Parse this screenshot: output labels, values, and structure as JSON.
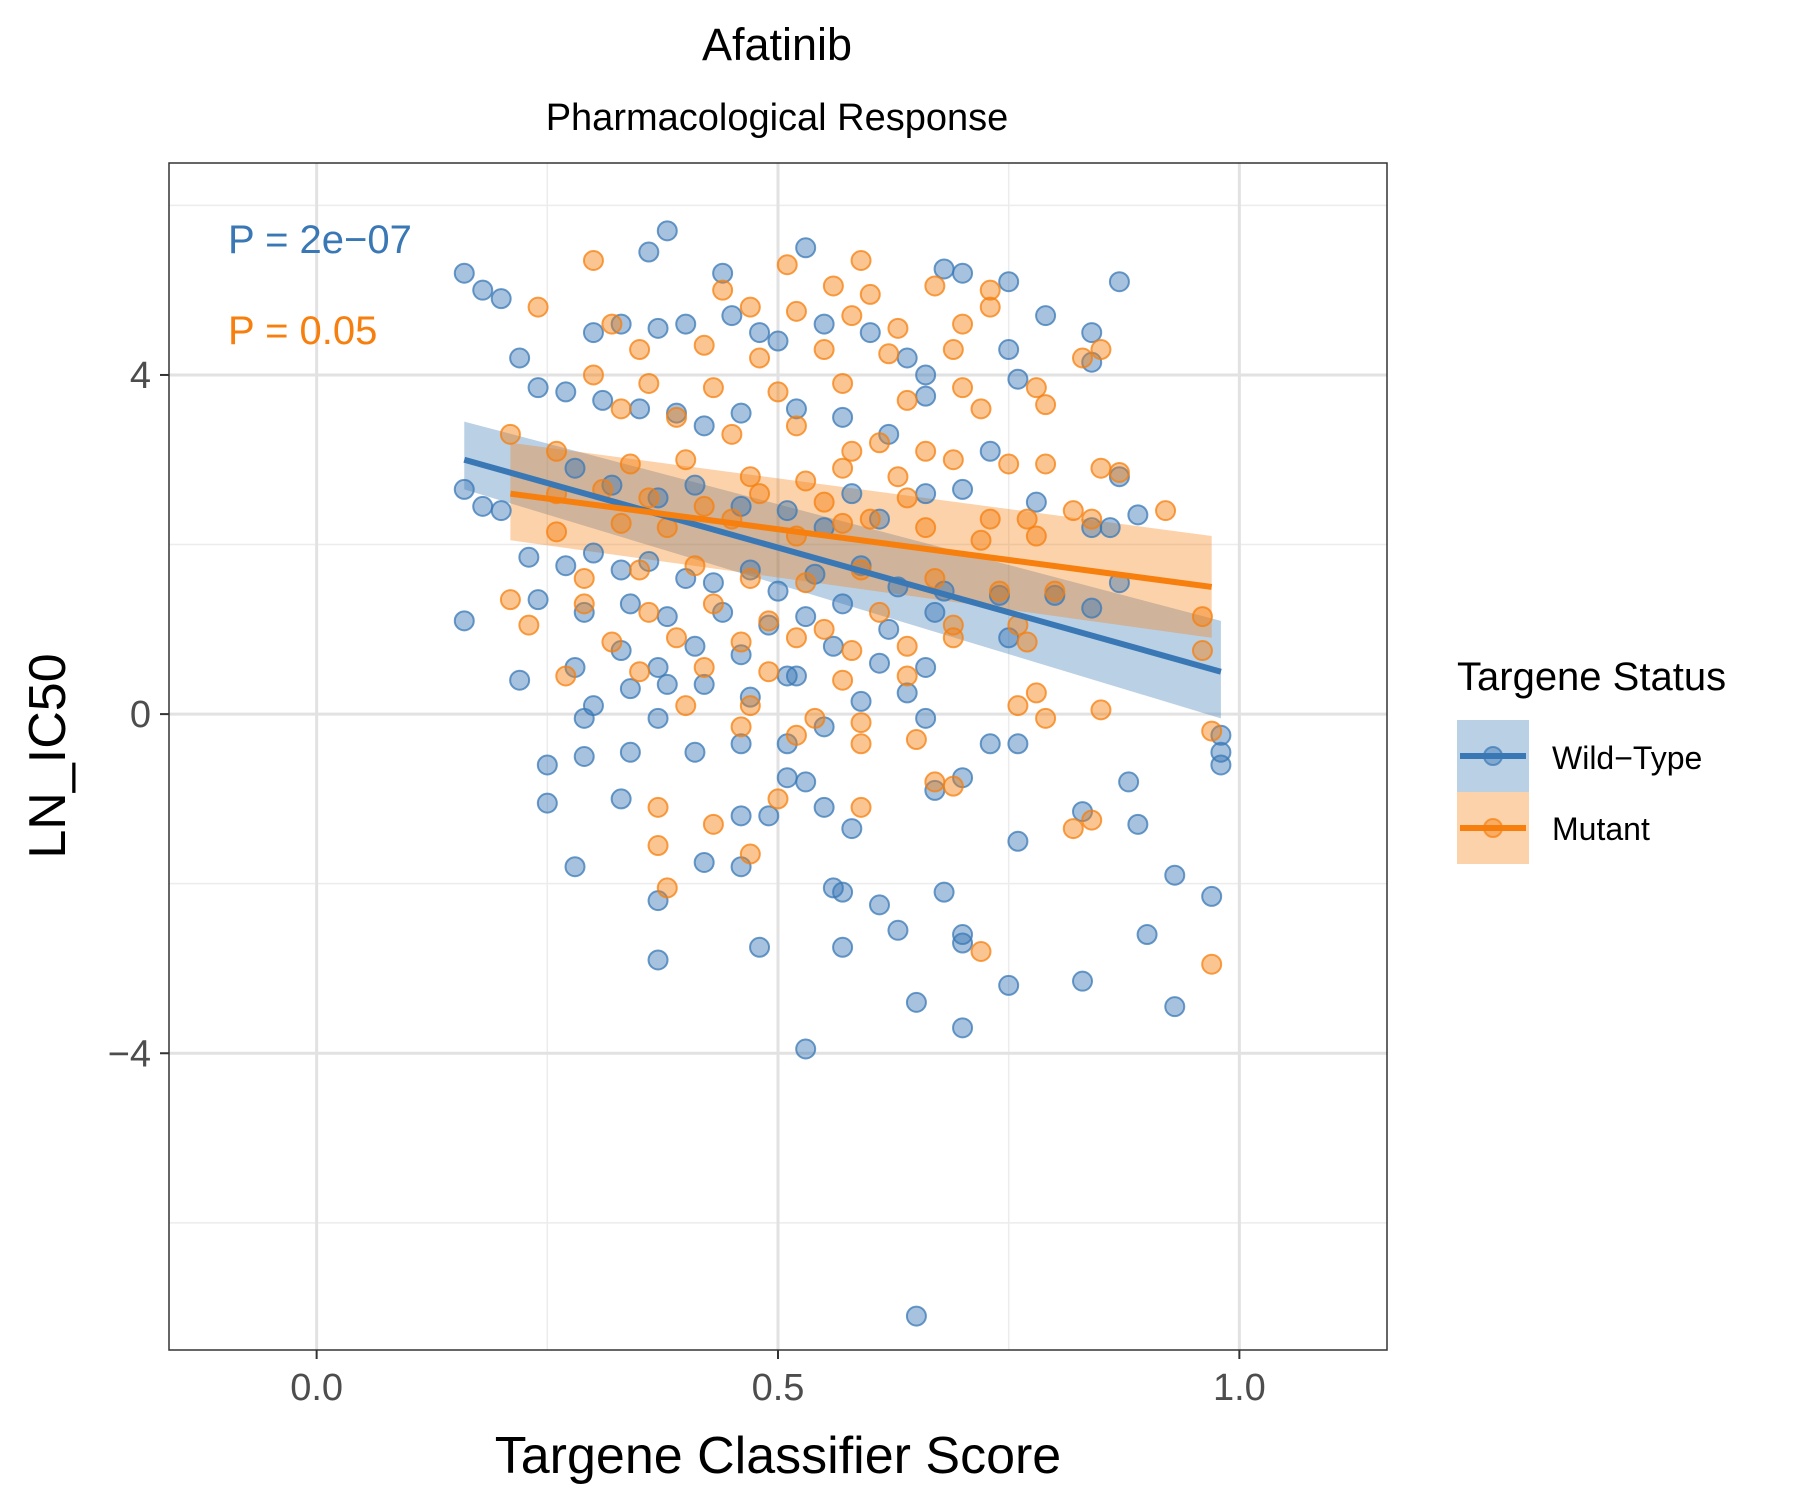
{
  "chart_data": {
    "type": "scatter",
    "title": "Afatinib",
    "subtitle": "Pharmacological Response",
    "xlabel": "Targene Classifier Score",
    "ylabel": "LN_IC50",
    "xlim": [
      -0.16,
      1.16
    ],
    "ylim": [
      -7.5,
      6.5
    ],
    "x_ticks": [
      0.0,
      0.5,
      1.0
    ],
    "x_tick_labels": [
      "0.0",
      "0.5",
      "1.0"
    ],
    "y_ticks": [
      -4,
      0,
      4
    ],
    "y_tick_labels": [
      "−4",
      "0",
      "4"
    ],
    "grid": true,
    "legend": {
      "title": "Targene Status",
      "placement": "right",
      "entries": [
        "Wild−Type",
        "Mutant"
      ]
    },
    "annotations": [
      {
        "text": "P = 2e−07",
        "color": "#3a78b5",
        "x": -0.09,
        "y": 5.5
      },
      {
        "text": "P = 0.05",
        "color": "#f67f0e",
        "x": -0.09,
        "y": 4.5
      }
    ],
    "series": [
      {
        "name": "Wild−Type",
        "color": "#3a78b5",
        "fit": {
          "x": [
            0.16,
            0.98
          ],
          "y": [
            3.0,
            0.5
          ]
        },
        "ci_band": {
          "x": [
            0.16,
            0.98
          ],
          "lower": [
            2.65,
            -0.05
          ],
          "upper": [
            3.45,
            1.1
          ]
        },
        "points": [
          [
            0.38,
            5.7
          ],
          [
            0.16,
            5.2
          ],
          [
            0.18,
            5.0
          ],
          [
            0.2,
            4.9
          ],
          [
            0.53,
            5.5
          ],
          [
            0.36,
            5.45
          ],
          [
            0.44,
            5.2
          ],
          [
            0.68,
            5.25
          ],
          [
            0.7,
            5.2
          ],
          [
            0.75,
            5.1
          ],
          [
            0.87,
            5.1
          ],
          [
            0.79,
            4.7
          ],
          [
            0.84,
            4.5
          ],
          [
            0.75,
            4.3
          ],
          [
            0.76,
            3.95
          ],
          [
            0.84,
            4.15
          ],
          [
            0.22,
            4.2
          ],
          [
            0.24,
            3.85
          ],
          [
            0.27,
            3.8
          ],
          [
            0.3,
            4.5
          ],
          [
            0.33,
            4.6
          ],
          [
            0.37,
            4.55
          ],
          [
            0.4,
            4.6
          ],
          [
            0.45,
            4.7
          ],
          [
            0.48,
            4.5
          ],
          [
            0.5,
            4.4
          ],
          [
            0.55,
            4.6
          ],
          [
            0.6,
            4.5
          ],
          [
            0.64,
            4.2
          ],
          [
            0.66,
            4.0
          ],
          [
            0.31,
            3.7
          ],
          [
            0.35,
            3.6
          ],
          [
            0.39,
            3.55
          ],
          [
            0.42,
            3.4
          ],
          [
            0.46,
            3.55
          ],
          [
            0.52,
            3.6
          ],
          [
            0.57,
            3.5
          ],
          [
            0.62,
            3.3
          ],
          [
            0.66,
            3.75
          ],
          [
            0.73,
            3.1
          ],
          [
            0.16,
            2.65
          ],
          [
            0.18,
            2.45
          ],
          [
            0.2,
            2.4
          ],
          [
            0.28,
            2.9
          ],
          [
            0.32,
            2.7
          ],
          [
            0.37,
            2.55
          ],
          [
            0.41,
            2.7
          ],
          [
            0.46,
            2.45
          ],
          [
            0.51,
            2.4
          ],
          [
            0.55,
            2.2
          ],
          [
            0.58,
            2.6
          ],
          [
            0.61,
            2.3
          ],
          [
            0.66,
            2.6
          ],
          [
            0.7,
            2.65
          ],
          [
            0.78,
            2.5
          ],
          [
            0.84,
            2.2
          ],
          [
            0.86,
            2.2
          ],
          [
            0.87,
            2.8
          ],
          [
            0.89,
            2.35
          ],
          [
            0.23,
            1.85
          ],
          [
            0.27,
            1.75
          ],
          [
            0.3,
            1.9
          ],
          [
            0.33,
            1.7
          ],
          [
            0.36,
            1.8
          ],
          [
            0.4,
            1.6
          ],
          [
            0.43,
            1.55
          ],
          [
            0.47,
            1.7
          ],
          [
            0.5,
            1.45
          ],
          [
            0.54,
            1.65
          ],
          [
            0.59,
            1.75
          ],
          [
            0.63,
            1.5
          ],
          [
            0.68,
            1.45
          ],
          [
            0.74,
            1.4
          ],
          [
            0.8,
            1.4
          ],
          [
            0.84,
            1.25
          ],
          [
            0.87,
            1.55
          ],
          [
            0.16,
            1.1
          ],
          [
            0.24,
            1.35
          ],
          [
            0.29,
            1.2
          ],
          [
            0.34,
            1.3
          ],
          [
            0.38,
            1.15
          ],
          [
            0.44,
            1.2
          ],
          [
            0.49,
            1.05
          ],
          [
            0.53,
            1.15
          ],
          [
            0.57,
            1.3
          ],
          [
            0.62,
            1.0
          ],
          [
            0.67,
            1.2
          ],
          [
            0.75,
            0.9
          ],
          [
            0.28,
            0.55
          ],
          [
            0.33,
            0.75
          ],
          [
            0.37,
            0.55
          ],
          [
            0.41,
            0.8
          ],
          [
            0.46,
            0.7
          ],
          [
            0.51,
            0.45
          ],
          [
            0.56,
            0.8
          ],
          [
            0.61,
            0.6
          ],
          [
            0.66,
            0.55
          ],
          [
            0.22,
            0.4
          ],
          [
            0.3,
            0.1
          ],
          [
            0.34,
            0.3
          ],
          [
            0.38,
            0.35
          ],
          [
            0.42,
            0.35
          ],
          [
            0.47,
            0.2
          ],
          [
            0.52,
            0.45
          ],
          [
            0.59,
            0.15
          ],
          [
            0.64,
            0.25
          ],
          [
            0.29,
            -0.05
          ],
          [
            0.37,
            -0.05
          ],
          [
            0.41,
            -0.45
          ],
          [
            0.46,
            -0.35
          ],
          [
            0.51,
            -0.35
          ],
          [
            0.55,
            -0.15
          ],
          [
            0.66,
            -0.05
          ],
          [
            0.73,
            -0.35
          ],
          [
            0.76,
            -0.35
          ],
          [
            0.98,
            -0.25
          ],
          [
            0.98,
            -0.45
          ],
          [
            0.98,
            -0.6
          ],
          [
            0.25,
            -0.6
          ],
          [
            0.29,
            -0.5
          ],
          [
            0.34,
            -0.45
          ],
          [
            0.51,
            -0.75
          ],
          [
            0.53,
            -0.8
          ],
          [
            0.67,
            -0.9
          ],
          [
            0.7,
            -0.75
          ],
          [
            0.88,
            -0.8
          ],
          [
            0.25,
            -1.05
          ],
          [
            0.33,
            -1.0
          ],
          [
            0.46,
            -1.2
          ],
          [
            0.49,
            -1.2
          ],
          [
            0.55,
            -1.1
          ],
          [
            0.58,
            -1.35
          ],
          [
            0.83,
            -1.15
          ],
          [
            0.89,
            -1.3
          ],
          [
            0.28,
            -1.8
          ],
          [
            0.42,
            -1.75
          ],
          [
            0.46,
            -1.8
          ],
          [
            0.76,
            -1.5
          ],
          [
            0.93,
            -1.9
          ],
          [
            0.37,
            -2.2
          ],
          [
            0.56,
            -2.05
          ],
          [
            0.57,
            -2.1
          ],
          [
            0.61,
            -2.25
          ],
          [
            0.68,
            -2.1
          ],
          [
            0.97,
            -2.15
          ],
          [
            0.63,
            -2.55
          ],
          [
            0.7,
            -2.6
          ],
          [
            0.7,
            -2.7
          ],
          [
            0.9,
            -2.6
          ],
          [
            0.37,
            -2.9
          ],
          [
            0.48,
            -2.75
          ],
          [
            0.57,
            -2.75
          ],
          [
            0.75,
            -3.2
          ],
          [
            0.83,
            -3.15
          ],
          [
            0.65,
            -3.4
          ],
          [
            0.93,
            -3.45
          ],
          [
            0.7,
            -3.7
          ],
          [
            0.53,
            -3.95
          ],
          [
            0.65,
            -7.1
          ]
        ]
      },
      {
        "name": "Mutant",
        "color": "#f67f0e",
        "fit": {
          "x": [
            0.21,
            0.97
          ],
          "y": [
            2.6,
            1.5
          ]
        },
        "ci_band": {
          "x": [
            0.21,
            0.97
          ],
          "lower": [
            2.05,
            0.9
          ],
          "upper": [
            3.2,
            2.1
          ]
        },
        "points": [
          [
            0.3,
            5.35
          ],
          [
            0.51,
            5.3
          ],
          [
            0.59,
            5.35
          ],
          [
            0.44,
            5.0
          ],
          [
            0.56,
            5.05
          ],
          [
            0.6,
            4.95
          ],
          [
            0.67,
            5.05
          ],
          [
            0.73,
            5.0
          ],
          [
            0.24,
            4.8
          ],
          [
            0.32,
            4.6
          ],
          [
            0.47,
            4.8
          ],
          [
            0.52,
            4.75
          ],
          [
            0.58,
            4.7
          ],
          [
            0.63,
            4.55
          ],
          [
            0.7,
            4.6
          ],
          [
            0.73,
            4.8
          ],
          [
            0.35,
            4.3
          ],
          [
            0.42,
            4.35
          ],
          [
            0.48,
            4.2
          ],
          [
            0.55,
            4.3
          ],
          [
            0.62,
            4.25
          ],
          [
            0.69,
            4.3
          ],
          [
            0.83,
            4.2
          ],
          [
            0.85,
            4.3
          ],
          [
            0.3,
            4.0
          ],
          [
            0.36,
            3.9
          ],
          [
            0.43,
            3.85
          ],
          [
            0.5,
            3.8
          ],
          [
            0.57,
            3.9
          ],
          [
            0.64,
            3.7
          ],
          [
            0.7,
            3.85
          ],
          [
            0.78,
            3.85
          ],
          [
            0.79,
            3.65
          ],
          [
            0.33,
            3.6
          ],
          [
            0.39,
            3.5
          ],
          [
            0.45,
            3.3
          ],
          [
            0.52,
            3.4
          ],
          [
            0.58,
            3.1
          ],
          [
            0.61,
            3.2
          ],
          [
            0.66,
            3.1
          ],
          [
            0.72,
            3.6
          ],
          [
            0.21,
            3.3
          ],
          [
            0.26,
            3.1
          ],
          [
            0.34,
            2.95
          ],
          [
            0.4,
            3.0
          ],
          [
            0.47,
            2.8
          ],
          [
            0.53,
            2.75
          ],
          [
            0.57,
            2.9
          ],
          [
            0.63,
            2.8
          ],
          [
            0.69,
            3.0
          ],
          [
            0.75,
            2.95
          ],
          [
            0.79,
            2.95
          ],
          [
            0.85,
            2.9
          ],
          [
            0.87,
            2.85
          ],
          [
            0.26,
            2.6
          ],
          [
            0.31,
            2.65
          ],
          [
            0.36,
            2.55
          ],
          [
            0.42,
            2.45
          ],
          [
            0.48,
            2.6
          ],
          [
            0.55,
            2.5
          ],
          [
            0.6,
            2.3
          ],
          [
            0.64,
            2.55
          ],
          [
            0.73,
            2.3
          ],
          [
            0.77,
            2.3
          ],
          [
            0.82,
            2.4
          ],
          [
            0.92,
            2.4
          ],
          [
            0.26,
            2.15
          ],
          [
            0.33,
            2.25
          ],
          [
            0.38,
            2.2
          ],
          [
            0.45,
            2.3
          ],
          [
            0.52,
            2.1
          ],
          [
            0.57,
            2.25
          ],
          [
            0.66,
            2.2
          ],
          [
            0.72,
            2.05
          ],
          [
            0.78,
            2.1
          ],
          [
            0.84,
            2.3
          ],
          [
            0.29,
            1.6
          ],
          [
            0.35,
            1.7
          ],
          [
            0.41,
            1.75
          ],
          [
            0.47,
            1.6
          ],
          [
            0.53,
            1.55
          ],
          [
            0.59,
            1.7
          ],
          [
            0.67,
            1.6
          ],
          [
            0.74,
            1.45
          ],
          [
            0.8,
            1.45
          ],
          [
            0.21,
            1.35
          ],
          [
            0.29,
            1.3
          ],
          [
            0.36,
            1.2
          ],
          [
            0.43,
            1.3
          ],
          [
            0.49,
            1.1
          ],
          [
            0.55,
            1.0
          ],
          [
            0.61,
            1.2
          ],
          [
            0.69,
            1.05
          ],
          [
            0.76,
            1.05
          ],
          [
            0.96,
            1.15
          ],
          [
            0.23,
            1.05
          ],
          [
            0.32,
            0.85
          ],
          [
            0.39,
            0.9
          ],
          [
            0.46,
            0.85
          ],
          [
            0.52,
            0.9
          ],
          [
            0.58,
            0.75
          ],
          [
            0.64,
            0.8
          ],
          [
            0.69,
            0.9
          ],
          [
            0.77,
            0.85
          ],
          [
            0.96,
            0.75
          ],
          [
            0.27,
            0.45
          ],
          [
            0.35,
            0.5
          ],
          [
            0.42,
            0.55
          ],
          [
            0.49,
            0.5
          ],
          [
            0.57,
            0.4
          ],
          [
            0.64,
            0.45
          ],
          [
            0.78,
            0.25
          ],
          [
            0.4,
            0.1
          ],
          [
            0.47,
            0.1
          ],
          [
            0.54,
            -0.05
          ],
          [
            0.59,
            -0.1
          ],
          [
            0.76,
            0.1
          ],
          [
            0.79,
            -0.05
          ],
          [
            0.85,
            0.05
          ],
          [
            0.97,
            -0.2
          ],
          [
            0.46,
            -0.15
          ],
          [
            0.52,
            -0.25
          ],
          [
            0.59,
            -0.35
          ],
          [
            0.65,
            -0.3
          ],
          [
            0.37,
            -1.1
          ],
          [
            0.43,
            -1.3
          ],
          [
            0.5,
            -1.0
          ],
          [
            0.59,
            -1.1
          ],
          [
            0.67,
            -0.8
          ],
          [
            0.69,
            -0.85
          ],
          [
            0.82,
            -1.35
          ],
          [
            0.84,
            -1.25
          ],
          [
            0.37,
            -1.55
          ],
          [
            0.47,
            -1.65
          ],
          [
            0.38,
            -2.05
          ],
          [
            0.72,
            -2.8
          ],
          [
            0.97,
            -2.95
          ]
        ]
      }
    ]
  }
}
